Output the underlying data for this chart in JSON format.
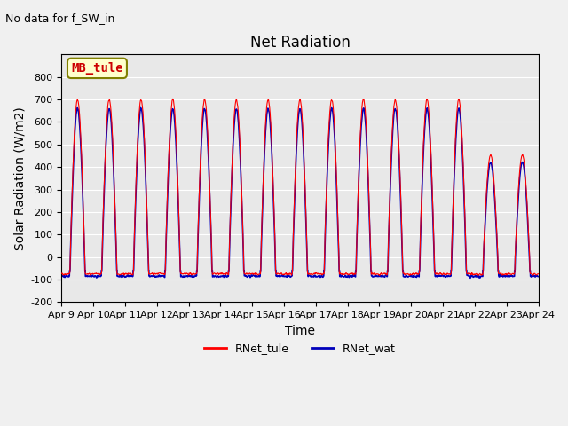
{
  "title": "Net Radiation",
  "suptitle": "No data for f_SW_in",
  "xlabel": "Time",
  "ylabel": "Solar Radiation (W/m2)",
  "ylim": [
    -200,
    900
  ],
  "yticks": [
    -200,
    -100,
    0,
    100,
    200,
    300,
    400,
    500,
    600,
    700,
    800
  ],
  "n_days": 15,
  "peak_value_tule": 700,
  "peak_value_wat": 680,
  "night_value": -75,
  "color_tule": "#ff0000",
  "color_wat": "#0000bb",
  "legend_labels": [
    "RNet_tule",
    "RNet_wat"
  ],
  "bg_color": "#e8e8e8",
  "annotation_box": "MB_tule",
  "annotation_color": "#cc0000",
  "annotation_bg": "#ffffcc",
  "xticklabels": [
    "Apr 9",
    "Apr 10",
    "Apr 11",
    "Apr 12",
    "Apr 13",
    "Apr 14",
    "Apr 15",
    "Apr 16",
    "Apr 17",
    "Apr 18",
    "Apr 19",
    "Apr 20",
    "Apr 21",
    "Apr 22",
    "Apr 23",
    "Apr 24"
  ],
  "title_fontsize": 12,
  "label_fontsize": 10,
  "tick_fontsize": 8
}
